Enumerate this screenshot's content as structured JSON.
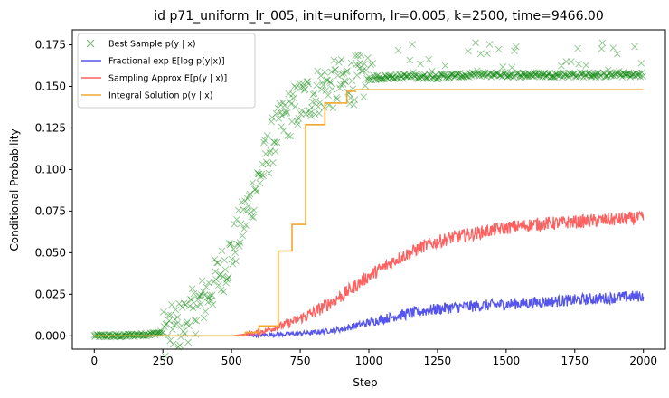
{
  "chart_data": {
    "type": "line",
    "title": "id p71_uniform_lr_005, init=uniform, lr=0.005, k=2500, time=9466.00",
    "xlabel": "Step",
    "ylabel": "Conditional Probability",
    "xlim": [
      -80,
      2080
    ],
    "ylim": [
      -0.008,
      0.184
    ],
    "xticks": [
      "0",
      "250",
      "500",
      "750",
      "1000",
      "1250",
      "1500",
      "1750",
      "2000"
    ],
    "xtick_values": [
      0,
      250,
      500,
      750,
      1000,
      1250,
      1500,
      1750,
      2000
    ],
    "yticks": [
      "0.000",
      "0.025",
      "0.050",
      "0.075",
      "0.100",
      "0.125",
      "0.150",
      "0.175"
    ],
    "ytick_values": [
      0,
      0.025,
      0.05,
      0.075,
      0.1,
      0.125,
      0.15,
      0.175
    ],
    "grid": false,
    "legend_position": "top-left",
    "series": [
      {
        "name": "Best Sample p(y | x)",
        "style": "scatter-x",
        "color": "#008000",
        "x": [
          0,
          100,
          200,
          250,
          300,
          350,
          400,
          450,
          500,
          550,
          600,
          650,
          700,
          750,
          800,
          850,
          900,
          950,
          1000,
          1100,
          1250,
          1400,
          1500,
          1600,
          1700,
          1800,
          1900,
          2000
        ],
        "y": [
          0.0,
          0.0,
          0.001,
          0.002,
          0.005,
          0.012,
          0.022,
          0.035,
          0.05,
          0.072,
          0.095,
          0.118,
          0.132,
          0.14,
          0.146,
          0.15,
          0.152,
          0.154,
          0.155,
          0.156,
          0.156,
          0.157,
          0.157,
          0.157,
          0.157,
          0.157,
          0.157,
          0.157
        ]
      },
      {
        "name": "Fractional exp E[log p(y|x)]",
        "style": "line",
        "color": "#5555ee",
        "x": [
          0,
          250,
          500,
          600,
          700,
          800,
          900,
          1000,
          1100,
          1200,
          1300,
          1400,
          1500,
          1600,
          1700,
          1800,
          1900,
          2000
        ],
        "y": [
          0.0,
          0.0,
          0.0,
          0.0005,
          0.001,
          0.002,
          0.004,
          0.008,
          0.012,
          0.015,
          0.017,
          0.018,
          0.019,
          0.02,
          0.021,
          0.022,
          0.023,
          0.024
        ]
      },
      {
        "name": "Sampling Approx E[p(y | x)]",
        "style": "line",
        "color": "#ff6060",
        "x": [
          0,
          250,
          500,
          600,
          700,
          800,
          900,
          1000,
          1100,
          1200,
          1300,
          1400,
          1500,
          1600,
          1700,
          1800,
          1900,
          2000
        ],
        "y": [
          0.0,
          0.0,
          0.0,
          0.002,
          0.007,
          0.014,
          0.024,
          0.036,
          0.046,
          0.054,
          0.059,
          0.062,
          0.065,
          0.067,
          0.068,
          0.069,
          0.07,
          0.071
        ]
      },
      {
        "name": "Integral Solution p(y | x)",
        "style": "step",
        "color": "#f0a830",
        "x": [
          0,
          550,
          600,
          670,
          690,
          720,
          750,
          770,
          820,
          840,
          900,
          920,
          950,
          2000
        ],
        "y": [
          0.0,
          0.002,
          0.006,
          0.051,
          0.051,
          0.067,
          0.067,
          0.127,
          0.127,
          0.14,
          0.14,
          0.147,
          0.148,
          0.148
        ]
      }
    ]
  }
}
